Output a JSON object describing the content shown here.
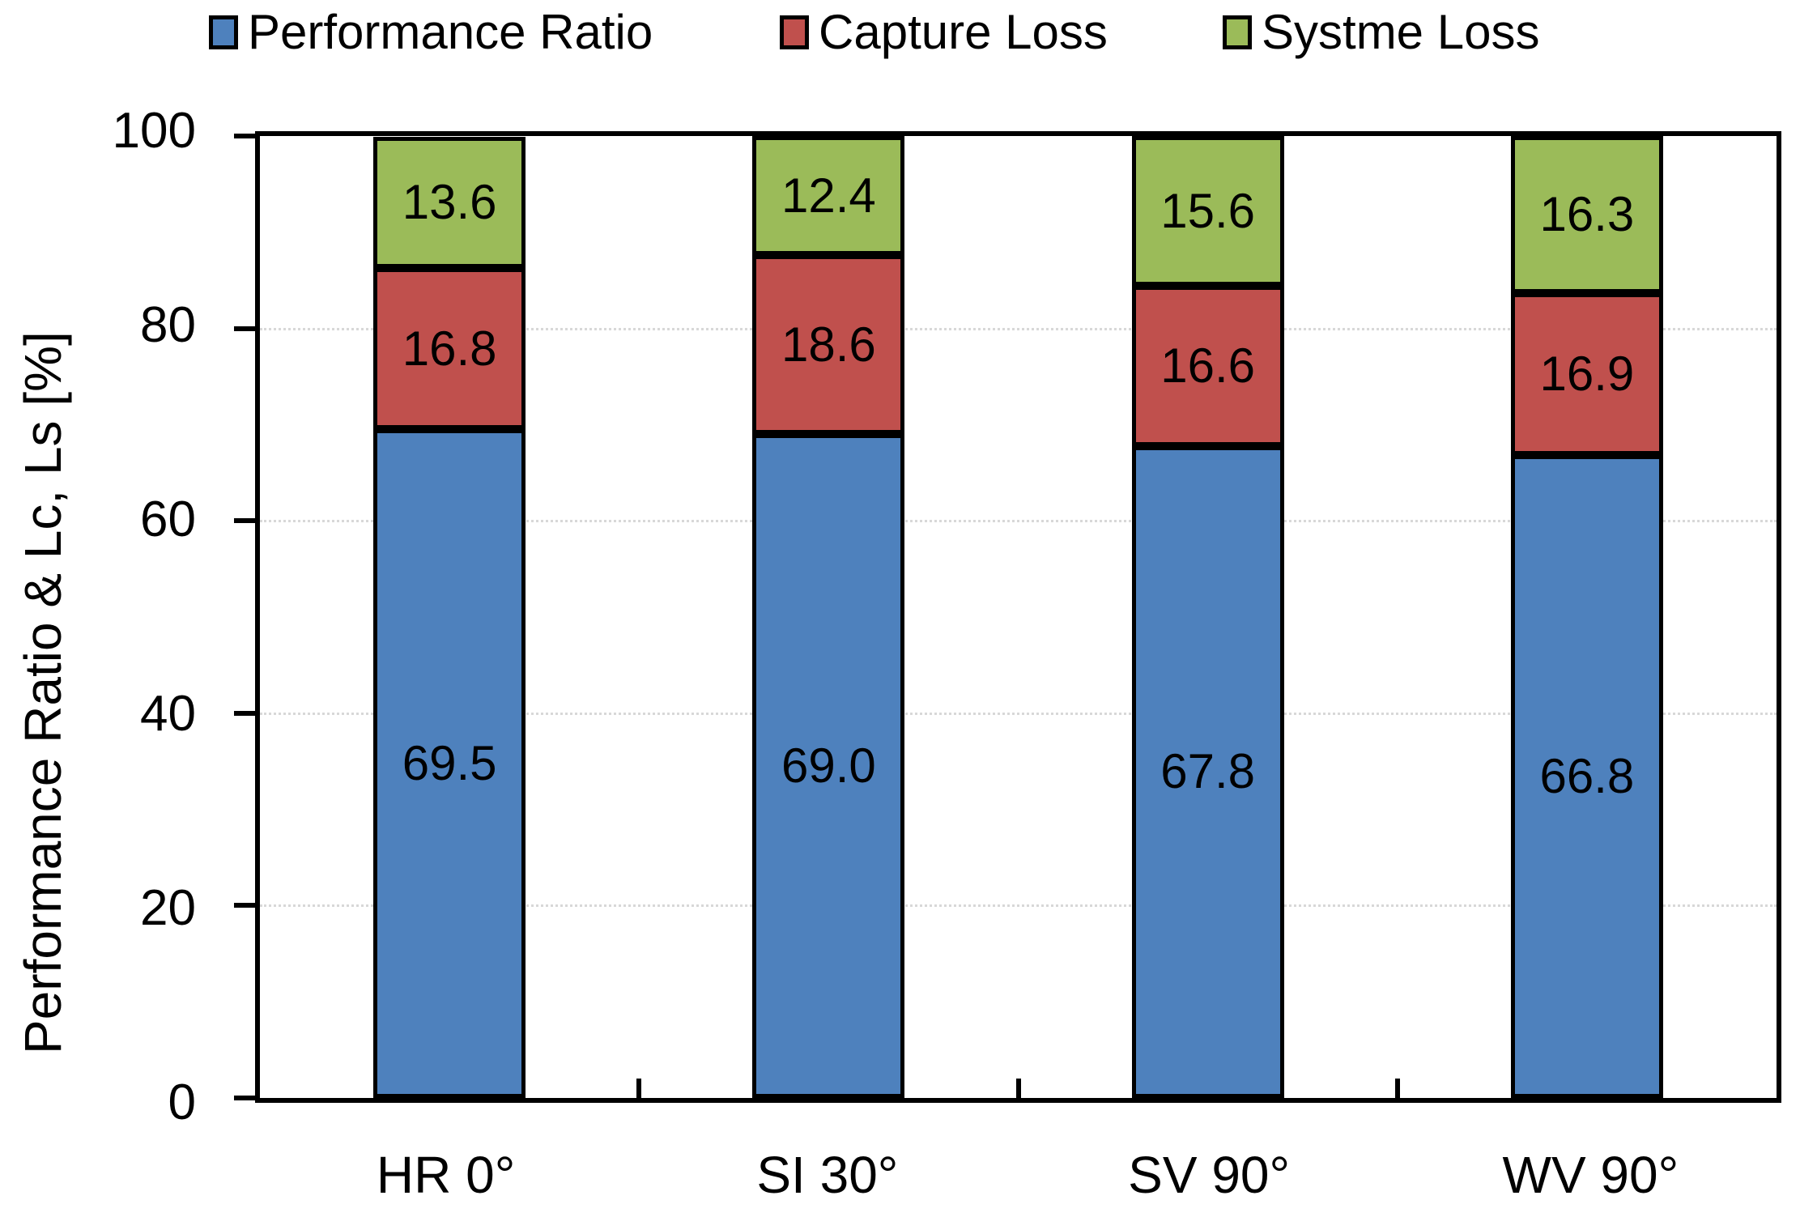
{
  "legend": [
    {
      "label": "Performance Ratio",
      "color": "#4E81BD"
    },
    {
      "label": "Capture Loss",
      "color": "#C0504D"
    },
    {
      "label": "Systme Loss",
      "color": "#9BBB59"
    }
  ],
  "chart_data": {
    "type": "bar",
    "stacked": true,
    "title": "",
    "xlabel": "",
    "ylabel": "Performance Ratio & Lc, Ls [%]",
    "ylim": [
      0,
      100
    ],
    "yticks": [
      0,
      20,
      40,
      60,
      80,
      100
    ],
    "grid": true,
    "legend_position": "top",
    "categories": [
      "HR 0°",
      "SI 30°",
      "SV 90°",
      "WV 90°"
    ],
    "series": [
      {
        "name": "Performance Ratio",
        "color": "#4E81BD",
        "values": [
          69.5,
          69.0,
          67.8,
          66.8
        ],
        "value_labels": [
          "69.5",
          "69.0",
          "67.8",
          "66.8"
        ]
      },
      {
        "name": "Capture Loss",
        "color": "#C0504D",
        "values": [
          16.8,
          18.6,
          16.6,
          16.9
        ],
        "value_labels": [
          "16.8",
          "18.6",
          "16.6",
          "16.9"
        ]
      },
      {
        "name": "Systme Loss",
        "color": "#9BBB59",
        "values": [
          13.6,
          12.4,
          15.6,
          16.3
        ],
        "value_labels": [
          "13.6",
          "12.4",
          "15.6",
          "16.3"
        ]
      }
    ]
  }
}
